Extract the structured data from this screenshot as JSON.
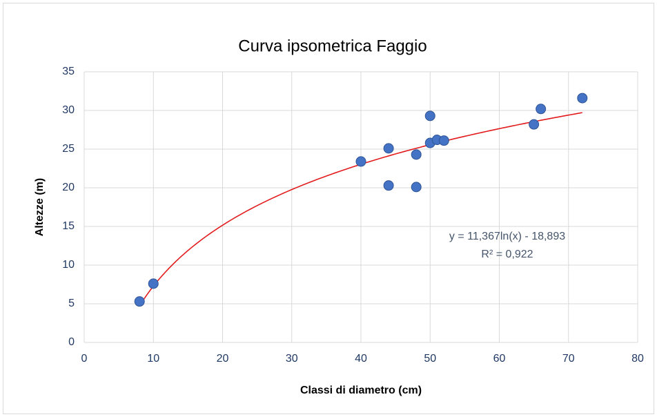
{
  "chart_data": {
    "type": "scatter",
    "title": "Curva ipsometrica Faggio",
    "xlabel": "Classi di diametro (cm)",
    "ylabel": "Altezze (m)",
    "x": [
      8,
      10,
      40,
      44,
      44,
      48,
      48,
      50,
      50,
      51,
      52,
      65,
      66,
      72
    ],
    "values": [
      5.3,
      7.6,
      23.4,
      25.1,
      20.3,
      24.3,
      20.1,
      29.3,
      25.8,
      26.2,
      26.1,
      28.2,
      30.2,
      31.6
    ],
    "color": "#4472c4",
    "trendline": {
      "type": "log",
      "coefficients": [
        11.367,
        -18.893
      ],
      "color": "#e31a1c"
    },
    "annotations": [
      "y = 11,367ln(x) - 18,893",
      "R² = 0,922"
    ],
    "xlim": [
      0,
      80
    ],
    "xticks": [
      0,
      10,
      20,
      30,
      40,
      50,
      60,
      70,
      80
    ],
    "ylim": [
      0,
      35
    ],
    "yticks": [
      0,
      5,
      10,
      15,
      20,
      25,
      30,
      35
    ],
    "grid": true
  }
}
